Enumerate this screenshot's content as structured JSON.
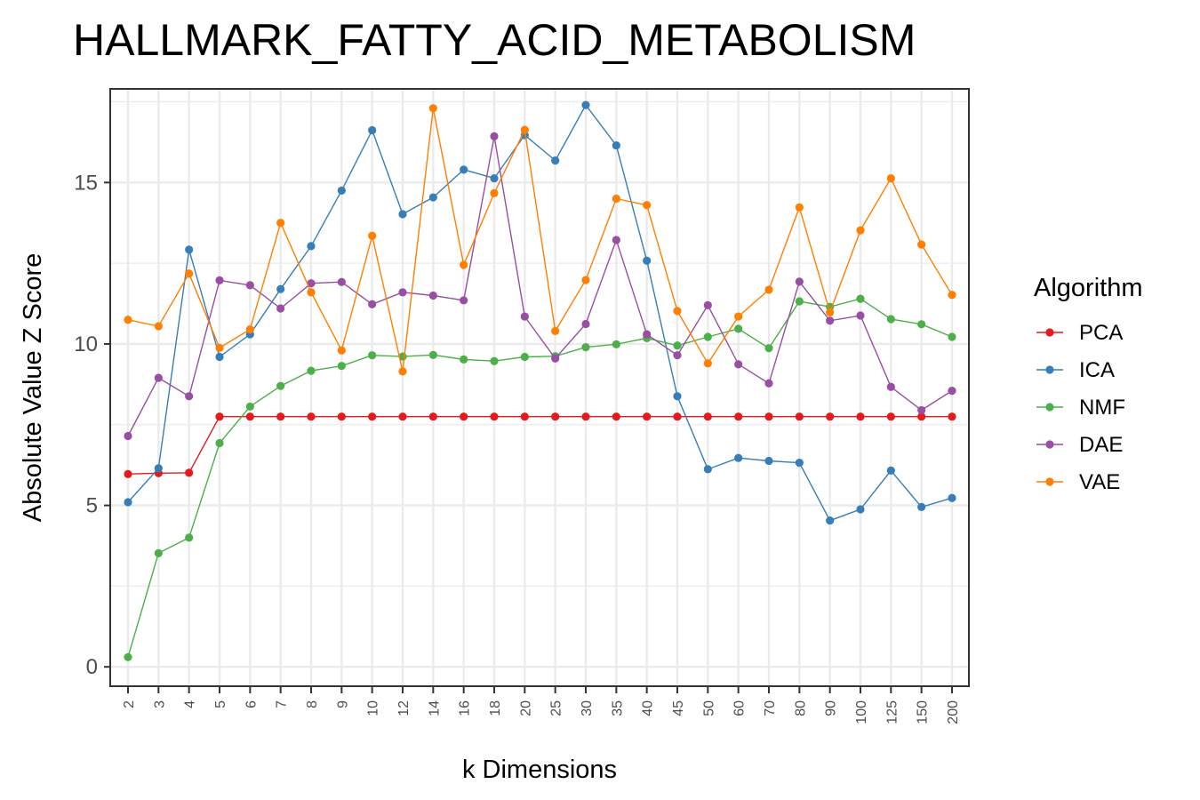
{
  "chart_data": {
    "type": "line",
    "title": "HALLMARK_FATTY_ACID_METABOLISM",
    "xlabel": "k Dimensions",
    "ylabel": "Absolute Value Z Score",
    "ylim": [
      -0.6,
      17.9
    ],
    "yticks": [
      "0",
      "5",
      "10",
      "15"
    ],
    "grid": true,
    "legend_position": "right",
    "legend_title": "Algorithm",
    "categories": [
      "2",
      "3",
      "4",
      "5",
      "6",
      "7",
      "8",
      "9",
      "10",
      "12",
      "14",
      "16",
      "18",
      "20",
      "25",
      "30",
      "35",
      "40",
      "45",
      "50",
      "60",
      "70",
      "80",
      "90",
      "100",
      "125",
      "150",
      "200"
    ],
    "series": [
      {
        "name": "PCA",
        "color": "#e41a1c",
        "values": [
          5.97,
          6.0,
          6.01,
          7.75,
          7.75,
          7.75,
          7.75,
          7.75,
          7.75,
          7.75,
          7.75,
          7.75,
          7.75,
          7.75,
          7.75,
          7.75,
          7.75,
          7.75,
          7.75,
          7.75,
          7.75,
          7.75,
          7.75,
          7.75,
          7.75,
          7.75,
          7.75,
          7.75
        ]
      },
      {
        "name": "ICA",
        "color": "#377eb8",
        "values": [
          5.1,
          6.15,
          12.92,
          9.6,
          10.3,
          11.7,
          13.03,
          14.75,
          16.62,
          14.02,
          14.54,
          15.4,
          15.13,
          16.47,
          15.68,
          17.4,
          16.15,
          12.58,
          8.38,
          6.12,
          6.47,
          6.38,
          6.32,
          4.53,
          4.88,
          6.08,
          4.95,
          5.23
        ]
      },
      {
        "name": "NMF",
        "color": "#4daf4a",
        "values": [
          0.3,
          3.52,
          4.0,
          6.93,
          8.06,
          8.7,
          9.17,
          9.32,
          9.65,
          9.61,
          9.66,
          9.52,
          9.47,
          9.6,
          9.62,
          9.9,
          9.99,
          10.18,
          9.95,
          10.22,
          10.47,
          9.87,
          11.32,
          11.15,
          11.4,
          10.77,
          10.61,
          10.22
        ]
      },
      {
        "name": "DAE",
        "color": "#984ea3",
        "values": [
          7.15,
          8.95,
          8.38,
          11.97,
          11.82,
          11.1,
          11.88,
          11.92,
          11.23,
          11.6,
          11.5,
          11.35,
          16.43,
          10.85,
          9.55,
          10.62,
          13.22,
          10.3,
          9.65,
          11.2,
          9.37,
          8.78,
          11.93,
          10.72,
          10.88,
          8.67,
          7.95,
          8.55
        ]
      },
      {
        "name": "VAE",
        "color": "#ff7f00",
        "values": [
          10.75,
          10.55,
          12.18,
          9.88,
          10.45,
          13.75,
          11.6,
          9.8,
          13.35,
          9.15,
          17.3,
          12.45,
          14.67,
          16.63,
          10.4,
          11.98,
          14.5,
          14.3,
          11.02,
          9.4,
          10.85,
          11.68,
          14.23,
          10.98,
          13.52,
          15.13,
          13.08,
          11.52
        ]
      }
    ]
  }
}
